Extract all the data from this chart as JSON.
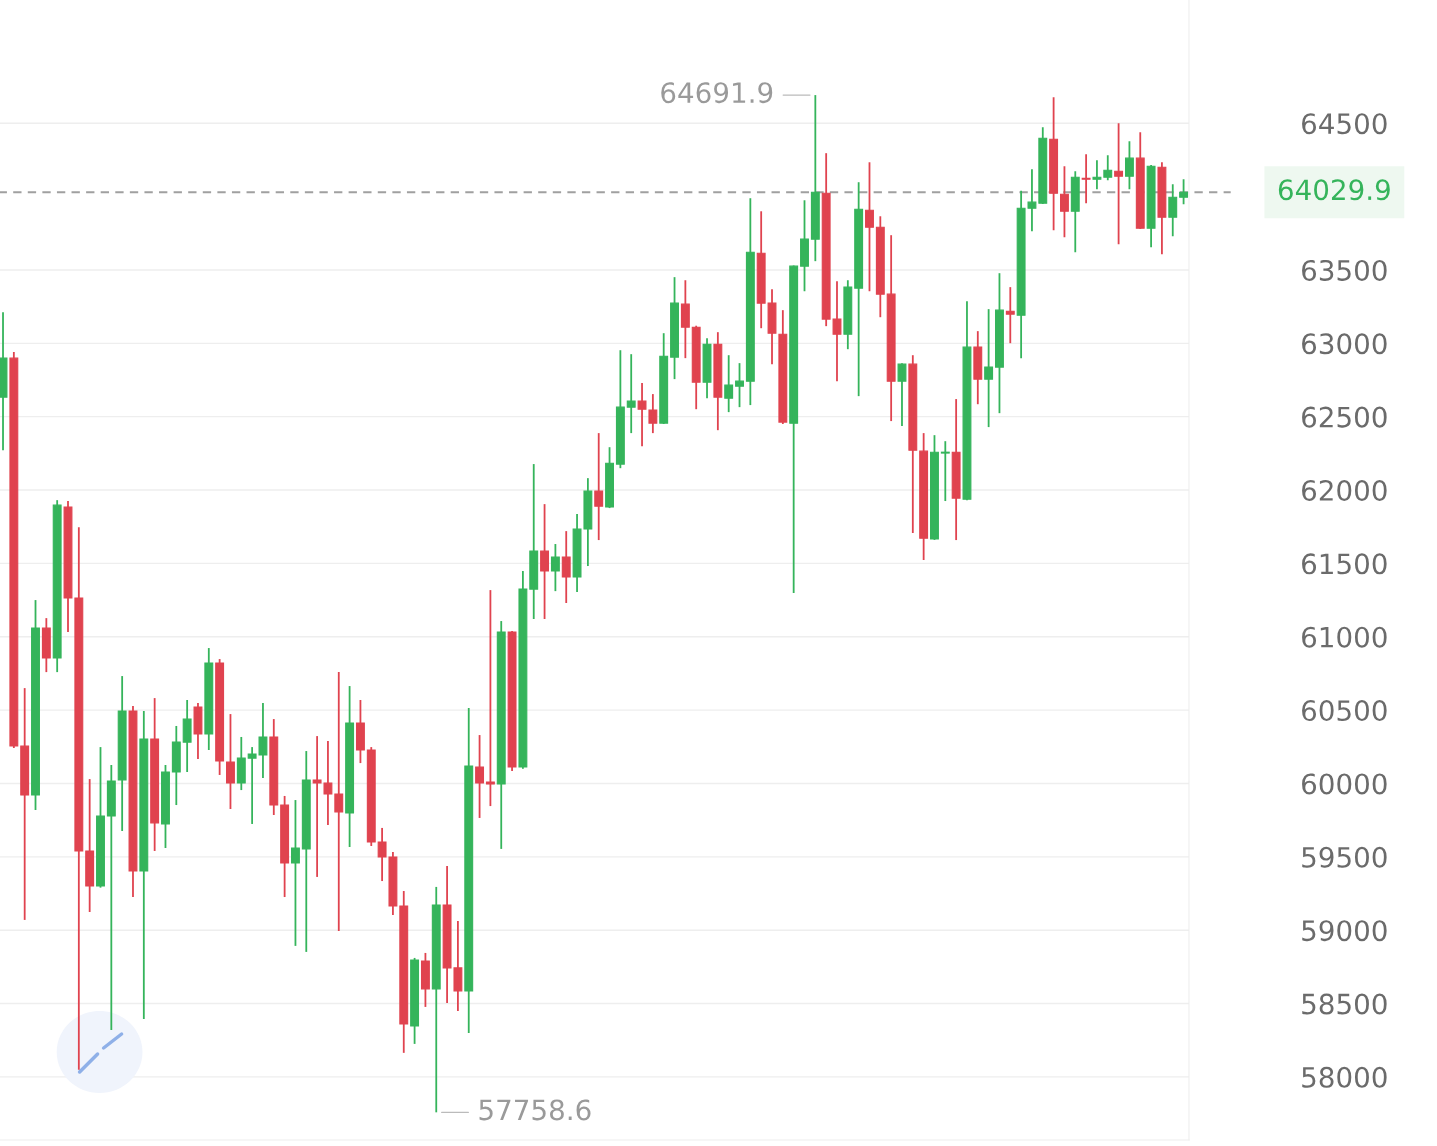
{
  "chart_data": {
    "type": "candlestick",
    "categories": [
      null,
      null,
      null,
      null,
      null,
      null,
      null,
      null,
      null,
      null,
      null,
      null,
      null,
      null,
      null,
      null,
      null,
      null,
      null,
      null,
      null,
      null,
      null,
      null,
      null,
      null,
      null,
      null,
      null,
      null,
      null,
      null,
      null,
      null,
      null,
      null,
      null,
      null,
      null,
      null,
      null,
      null,
      null,
      null,
      null,
      null,
      null,
      null,
      null,
      null,
      null,
      null,
      null,
      null,
      null,
      null,
      null,
      null,
      null,
      null,
      null,
      null,
      null,
      null,
      null,
      null,
      null,
      null,
      null,
      null,
      null,
      null,
      null,
      null,
      null,
      null,
      null,
      null,
      null,
      null,
      null,
      null,
      null,
      null,
      null,
      null,
      null,
      null,
      null,
      null,
      null,
      null,
      null,
      null,
      null,
      null,
      null,
      null,
      null,
      null,
      null,
      null,
      null,
      null,
      null,
      null,
      null,
      null,
      null,
      null
    ],
    "ohlc": [
      [
        62633,
        63212,
        62272,
        62899
      ],
      [
        62899,
        62940,
        60242,
        60255
      ],
      [
        60255,
        60650,
        59070,
        59921
      ],
      [
        59921,
        61250,
        59819,
        61059
      ],
      [
        61059,
        61127,
        60759,
        60855
      ],
      [
        60855,
        61931,
        60759,
        61897
      ],
      [
        61884,
        61925,
        61032,
        61264
      ],
      [
        61264,
        61747,
        58048,
        59540
      ],
      [
        59540,
        60030,
        59124,
        59301
      ],
      [
        59301,
        60248,
        59290,
        59778
      ],
      [
        59778,
        60126,
        58320,
        60017
      ],
      [
        60024,
        60732,
        59676,
        60494
      ],
      [
        60494,
        60528,
        59226,
        59404
      ],
      [
        59404,
        60494,
        58395,
        60303
      ],
      [
        60303,
        60582,
        59540,
        59731
      ],
      [
        59724,
        60126,
        59560,
        60078
      ],
      [
        60078,
        60392,
        59853,
        60282
      ],
      [
        60282,
        60569,
        60078,
        60439
      ],
      [
        60521,
        60548,
        60167,
        60337
      ],
      [
        60337,
        60923,
        60228,
        60821
      ],
      [
        60821,
        60848,
        60058,
        60153
      ],
      [
        60146,
        60473,
        59826,
        60003
      ],
      [
        60003,
        60317,
        59955,
        60173
      ],
      [
        60173,
        60248,
        59724,
        60201
      ],
      [
        60194,
        60548,
        60037,
        60317
      ],
      [
        60317,
        60439,
        59785,
        59853
      ],
      [
        59853,
        59915,
        59226,
        59458
      ],
      [
        59458,
        59887,
        58893,
        59560
      ],
      [
        59554,
        60221,
        58852,
        60024
      ],
      [
        60024,
        60323,
        59363,
        60003
      ],
      [
        60003,
        60289,
        59717,
        59928
      ],
      [
        59928,
        60759,
        58995,
        59806
      ],
      [
        59799,
        60664,
        59567,
        60412
      ],
      [
        60412,
        60569,
        60139,
        60228
      ],
      [
        60228,
        60248,
        59574,
        59601
      ],
      [
        59601,
        59697,
        59335,
        59499
      ],
      [
        59499,
        59533,
        59104,
        59165
      ],
      [
        59165,
        59267,
        58164,
        58361
      ],
      [
        58347,
        58811,
        58225,
        58797
      ],
      [
        58790,
        58845,
        58477,
        58600
      ],
      [
        58600,
        59295,
        57758.6,
        59172
      ],
      [
        59172,
        59438,
        58504,
        58743
      ],
      [
        58743,
        59063,
        58450,
        58586
      ],
      [
        58586,
        60514,
        58300,
        60119
      ],
      [
        60112,
        60330,
        59765,
        60003
      ],
      [
        60010,
        61318,
        59846,
        59996
      ],
      [
        59996,
        61107,
        59554,
        61032
      ],
      [
        61032,
        61040,
        60085,
        60112
      ],
      [
        60112,
        61448,
        60100,
        61325
      ],
      [
        61325,
        62177,
        61121,
        61584
      ],
      [
        61584,
        61904,
        61121,
        61448
      ],
      [
        61448,
        61632,
        61311,
        61543
      ],
      [
        61543,
        61720,
        61230,
        61407
      ],
      [
        61407,
        61836,
        61305,
        61734
      ],
      [
        61734,
        62081,
        61482,
        61993
      ],
      [
        61993,
        62388,
        61659,
        61890
      ],
      [
        61884,
        62292,
        61877,
        62183
      ],
      [
        62177,
        62953,
        62149,
        62565
      ],
      [
        62565,
        62926,
        62388,
        62606
      ],
      [
        62606,
        62729,
        62299,
        62551
      ],
      [
        62545,
        62654,
        62388,
        62456
      ],
      [
        62456,
        63069,
        62450,
        62912
      ],
      [
        62906,
        63451,
        62756,
        63274
      ],
      [
        63267,
        63430,
        62899,
        63110
      ],
      [
        63110,
        63120,
        62551,
        62735
      ],
      [
        62735,
        63035,
        62626,
        62994
      ],
      [
        62994,
        63076,
        62408,
        62633
      ],
      [
        62626,
        62919,
        62531,
        62715
      ],
      [
        62708,
        62865,
        62565,
        62742
      ],
      [
        62742,
        63989,
        62579,
        63621
      ],
      [
        63614,
        63900,
        63103,
        63274
      ],
      [
        63274,
        63369,
        62858,
        63069
      ],
      [
        63062,
        63226,
        62450,
        62463
      ],
      [
        62456,
        63530,
        61298,
        63526
      ],
      [
        63526,
        63975,
        63355,
        63710
      ],
      [
        63710,
        64691.9,
        63560,
        64030
      ],
      [
        64023,
        64296,
        63117,
        63165
      ],
      [
        63165,
        63423,
        62742,
        63062
      ],
      [
        63062,
        63430,
        62960,
        63383
      ],
      [
        63376,
        64098,
        62640,
        63914
      ],
      [
        63907,
        64234,
        63355,
        63791
      ],
      [
        63791,
        63866,
        63178,
        63335
      ],
      [
        63335,
        63737,
        62470,
        62742
      ],
      [
        62742,
        62865,
        62436,
        62858
      ],
      [
        62858,
        62919,
        61707,
        62272
      ],
      [
        62265,
        62388,
        61523,
        61672
      ],
      [
        61666,
        62374,
        61660,
        62258
      ],
      [
        62252,
        62333,
        61925,
        62258
      ],
      [
        62258,
        62620,
        61659,
        61945
      ],
      [
        61938,
        63287,
        61930,
        62974
      ],
      [
        62974,
        63083,
        62585,
        62756
      ],
      [
        62756,
        63233,
        62429,
        62838
      ],
      [
        62838,
        63478,
        62524,
        63226
      ],
      [
        63219,
        63383,
        63001,
        63199
      ],
      [
        63192,
        64040,
        62899,
        63921
      ],
      [
        63921,
        64187,
        63764,
        63962
      ],
      [
        63955,
        64473,
        63950,
        64398
      ],
      [
        64391,
        64677,
        63771,
        64023
      ],
      [
        64016,
        64207,
        63723,
        63900
      ],
      [
        63900,
        64173,
        63621,
        64132
      ],
      [
        64125,
        64289,
        63955,
        64118
      ],
      [
        64118,
        64248,
        64050,
        64132
      ],
      [
        64132,
        64282,
        64112,
        64180
      ],
      [
        64173,
        64500,
        63676,
        64139
      ],
      [
        64139,
        64377,
        64050,
        64262
      ],
      [
        64262,
        64439,
        63780,
        63785
      ],
      [
        63785,
        64215,
        63655,
        64207
      ],
      [
        64200,
        64234,
        63607,
        63860
      ],
      [
        63860,
        64084,
        63730,
        63996
      ],
      [
        63996,
        64118,
        63948,
        64029.9
      ]
    ],
    "colors": [
      "#35b45b",
      "#e0434f",
      "#e0434f",
      "#35b45b",
      "#e0434f",
      "#35b45b",
      "#e0434f",
      "#e0434f",
      "#e0434f",
      "#35b45b",
      "#35b45b",
      "#35b45b",
      "#e0434f",
      "#35b45b",
      "#e0434f",
      "#35b45b",
      "#35b45b",
      "#35b45b",
      "#e0434f",
      "#35b45b",
      "#e0434f",
      "#e0434f",
      "#35b45b",
      "#35b45b",
      "#35b45b",
      "#e0434f",
      "#e0434f",
      "#35b45b",
      "#35b45b",
      "#e0434f",
      "#e0434f",
      "#e0434f",
      "#35b45b",
      "#e0434f",
      "#e0434f",
      "#e0434f",
      "#e0434f",
      "#e0434f",
      "#35b45b",
      "#e0434f",
      "#35b45b",
      "#e0434f",
      "#e0434f",
      "#35b45b",
      "#e0434f",
      "#e0434f",
      "#35b45b",
      "#e0434f",
      "#35b45b",
      "#35b45b",
      "#e0434f",
      "#35b45b",
      "#e0434f",
      "#35b45b",
      "#35b45b",
      "#e0434f",
      "#35b45b",
      "#35b45b",
      "#35b45b",
      "#e0434f",
      "#e0434f",
      "#35b45b",
      "#35b45b",
      "#e0434f",
      "#e0434f",
      "#35b45b",
      "#e0434f",
      "#35b45b",
      "#35b45b",
      "#35b45b",
      "#e0434f",
      "#e0434f",
      "#e0434f",
      "#35b45b",
      "#35b45b",
      "#35b45b",
      "#e0434f",
      "#e0434f",
      "#35b45b",
      "#35b45b",
      "#e0434f",
      "#e0434f",
      "#e0434f",
      "#35b45b",
      "#e0434f",
      "#e0434f",
      "#35b45b",
      "#35b45b",
      "#e0434f",
      "#35b45b",
      "#e0434f",
      "#35b45b",
      "#35b45b",
      "#e0434f",
      "#35b45b",
      "#35b45b",
      "#35b45b",
      "#e0434f",
      "#e0434f",
      "#35b45b",
      "#e0434f",
      "#35b45b",
      "#35b45b",
      "#e0434f",
      "#35b45b",
      "#e0434f",
      "#35b45b",
      "#e0434f",
      "#35b45b",
      "#35b45b"
    ],
    "ylim": [
      57570,
      65340
    ],
    "yticks": [
      58000,
      58500,
      59000,
      59500,
      60000,
      60500,
      61000,
      61500,
      62000,
      62500,
      63000,
      63500,
      64500
    ],
    "grid": "y",
    "tick_labels": "y",
    "ref_lines": [
      {
        "axis": "y",
        "value": 64029.9,
        "label": "64029.9",
        "color": "#a0a0a0",
        "line_style": "dashed"
      }
    ],
    "annotations": [
      "64691.9",
      "57758.6"
    ]
  }
}
